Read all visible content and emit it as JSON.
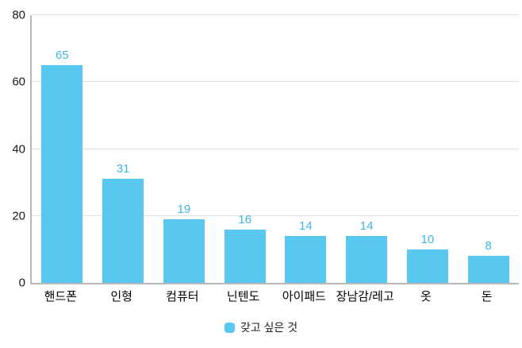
{
  "chart_data": {
    "type": "bar",
    "categories": [
      "핸드폰",
      "인형",
      "컴퓨터",
      "닌텐도",
      "아이패드",
      "장남감/레고",
      "옷",
      "돈"
    ],
    "values": [
      65,
      31,
      19,
      16,
      14,
      14,
      10,
      8
    ],
    "title": "",
    "xlabel": "",
    "ylabel": "",
    "ylim": [
      0,
      80
    ],
    "yticks": [
      0,
      20,
      40,
      60,
      80
    ],
    "grid": true,
    "legend_position": "bottom",
    "legend_label": "갖고 싶은 것",
    "bar_color": "#58C8F0",
    "value_label_color": "#41B6E6",
    "axis_color": "#b8b8b8",
    "gridline_color": "#e2e2e2"
  }
}
